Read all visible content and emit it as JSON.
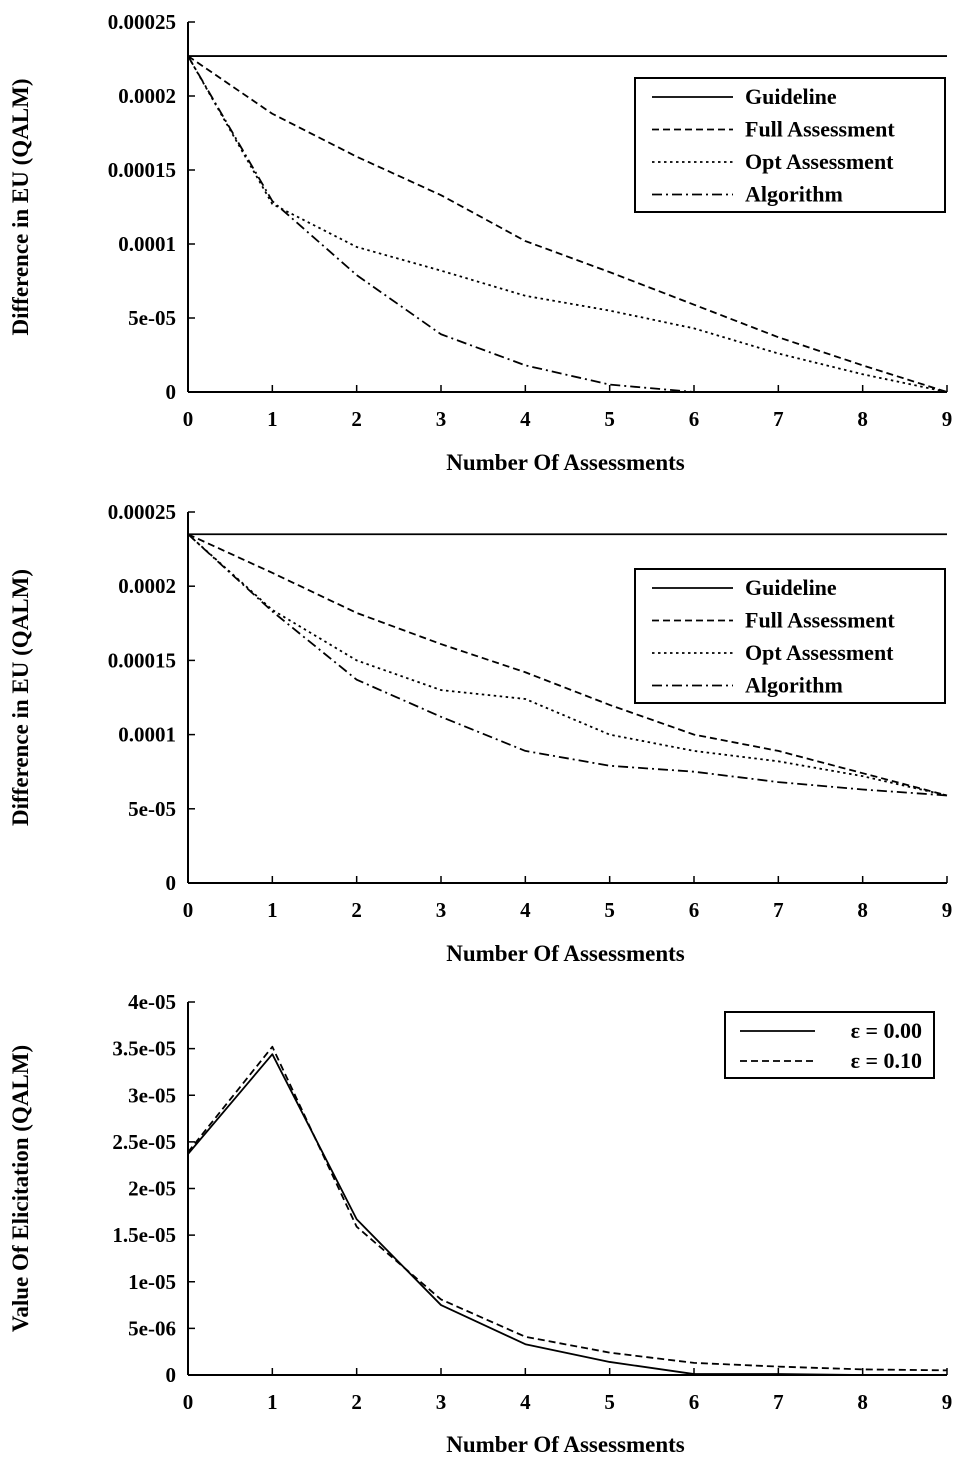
{
  "chart_data": [
    {
      "type": "line",
      "xlabel": "Number Of Assessments",
      "ylabel": "Difference in EU (QALM)",
      "xlim": [
        0,
        9
      ],
      "ylim": [
        0,
        0.00025
      ],
      "x_ticks": [
        "0",
        "1",
        "2",
        "3",
        "4",
        "5",
        "6",
        "7",
        "8",
        "9"
      ],
      "y_ticks": [
        "0",
        "5e-05",
        "0.0001",
        "0.00015",
        "0.0002",
        "0.00025"
      ],
      "y_tick_values": [
        0,
        5e-05,
        0.0001,
        0.00015,
        0.0002,
        0.00025
      ],
      "grid": false,
      "legend": "top-right",
      "x": [
        0,
        1,
        2,
        3,
        4,
        5,
        6,
        7,
        8,
        9
      ],
      "series": [
        {
          "name": "Guideline",
          "style": "solid",
          "values": [
            0.000227,
            0.000227,
            0.000227,
            0.000227,
            0.000227,
            0.000227,
            0.000227,
            0.000227,
            0.000227,
            0.000227
          ]
        },
        {
          "name": "Full Assessment",
          "style": "dashed",
          "values": [
            0.000227,
            0.000188,
            0.000159,
            0.000133,
            0.000102,
            8.1e-05,
            5.9e-05,
            3.7e-05,
            1.8e-05,
            0.0
          ]
        },
        {
          "name": "Opt Assessment",
          "style": "dotted",
          "values": [
            0.000227,
            0.000127,
            9.8e-05,
            8.2e-05,
            6.5e-05,
            5.5e-05,
            4.3e-05,
            2.6e-05,
            1.2e-05,
            0.0
          ]
        },
        {
          "name": "Algorithm",
          "style": "dashdot",
          "values": [
            0.000227,
            0.000129,
            7.9e-05,
            3.9e-05,
            1.8e-05,
            5e-06,
            0.0,
            0.0,
            0.0,
            0.0
          ]
        }
      ]
    },
    {
      "type": "line",
      "xlabel": "Number Of Assessments",
      "ylabel": "Difference in EU (QALM)",
      "xlim": [
        0,
        9
      ],
      "ylim": [
        0,
        0.00025
      ],
      "x_ticks": [
        "0",
        "1",
        "2",
        "3",
        "4",
        "5",
        "6",
        "7",
        "8",
        "9"
      ],
      "y_ticks": [
        "0",
        "5e-05",
        "0.0001",
        "0.00015",
        "0.0002",
        "0.00025"
      ],
      "y_tick_values": [
        0,
        5e-05,
        0.0001,
        0.00015,
        0.0002,
        0.00025
      ],
      "grid": false,
      "legend": "top-right",
      "x": [
        0,
        1,
        2,
        3,
        4,
        5,
        6,
        7,
        8,
        9
      ],
      "series": [
        {
          "name": "Guideline",
          "style": "solid",
          "values": [
            0.000235,
            0.000235,
            0.000235,
            0.000235,
            0.000235,
            0.000235,
            0.000235,
            0.000235,
            0.000235,
            0.000235
          ]
        },
        {
          "name": "Full Assessment",
          "style": "dashed",
          "values": [
            0.000235,
            0.000209,
            0.000182,
            0.000161,
            0.000142,
            0.00012,
            0.0001,
            8.9e-05,
            7.4e-05,
            5.9e-05
          ]
        },
        {
          "name": "Opt Assessment",
          "style": "dotted",
          "values": [
            0.000235,
            0.000184,
            0.00015,
            0.00013,
            0.000124,
            0.0001,
            8.9e-05,
            8.2e-05,
            7.2e-05,
            5.9e-05
          ]
        },
        {
          "name": "Algorithm",
          "style": "dashdot",
          "values": [
            0.000235,
            0.000183,
            0.000137,
            0.000112,
            8.9e-05,
            7.9e-05,
            7.5e-05,
            6.8e-05,
            6.3e-05,
            5.9e-05
          ]
        }
      ]
    },
    {
      "type": "line",
      "xlabel": "Number Of Assessments",
      "ylabel": "Value Of Elicitation (QALM)",
      "xlim": [
        0,
        9
      ],
      "ylim": [
        0,
        4e-05
      ],
      "x_ticks": [
        "0",
        "1",
        "2",
        "3",
        "4",
        "5",
        "6",
        "7",
        "8",
        "9"
      ],
      "y_ticks": [
        "0",
        "5e-06",
        "1e-05",
        "1.5e-05",
        "2e-05",
        "2.5e-05",
        "3e-05",
        "3.5e-05",
        "4e-05"
      ],
      "y_tick_values": [
        0,
        5e-06,
        1e-05,
        1.5e-05,
        2e-05,
        2.5e-05,
        3e-05,
        3.5e-05,
        4e-05
      ],
      "grid": false,
      "legend": "top-right",
      "x": [
        0,
        1,
        2,
        3,
        4,
        5,
        6,
        7,
        8,
        9
      ],
      "series": [
        {
          "name": "ε = 0.00",
          "style": "solid",
          "values": [
            2.37e-05,
            3.44e-05,
            1.67e-05,
            7.5e-06,
            3.3e-06,
            1.4e-06,
            1e-07,
            1e-07,
            0.0,
            0.0
          ]
        },
        {
          "name": "ε = 0.10",
          "style": "dashed",
          "values": [
            2.39e-05,
            3.52e-05,
            1.59e-05,
            8.1e-06,
            4.1e-06,
            2.4e-06,
            1.3e-06,
            9e-07,
            6e-07,
            5e-07
          ]
        }
      ]
    }
  ]
}
